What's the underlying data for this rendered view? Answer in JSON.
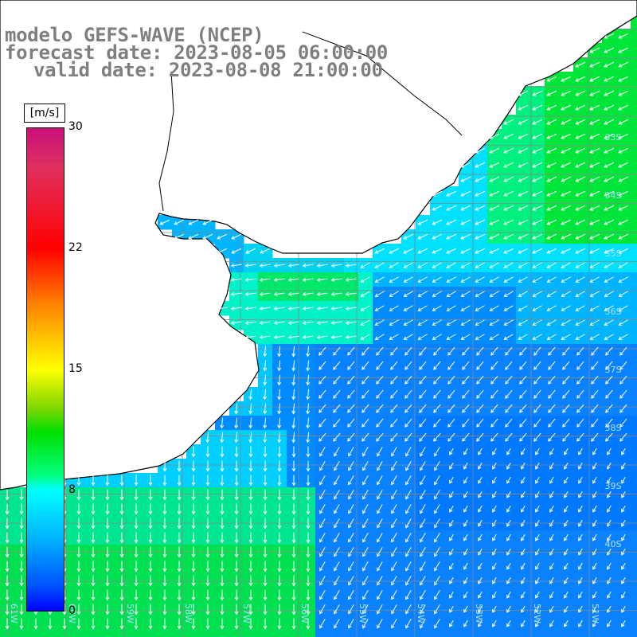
{
  "title": {
    "line1": "modelo GEFS-WAVE (NCEP)",
    "line2": "forecast date: 2023-08-05 06:00:00",
    "line3": "valid date: 2023-08-08 21:00:00"
  },
  "legend": {
    "unit": "[m/s]",
    "ticks": [
      {
        "label": "30",
        "value": 30
      },
      {
        "label": "22",
        "value": 22
      },
      {
        "label": "15",
        "value": 15
      },
      {
        "label": "8",
        "value": 8
      },
      {
        "label": "0",
        "value": 0
      }
    ]
  },
  "map": {
    "lat_labels": [
      "33S",
      "34S",
      "35S",
      "36S",
      "37S",
      "38S",
      "39S",
      "40S"
    ],
    "lon_labels": [
      "61W",
      "60W",
      "59W",
      "58W",
      "57W",
      "56W",
      "55W",
      "54W",
      "53W",
      "52W",
      "51W"
    ],
    "colors": {
      "land": "#ffffff",
      "grid": "#888888",
      "coast": "#000000",
      "arrows": "#ffffff"
    }
  }
}
